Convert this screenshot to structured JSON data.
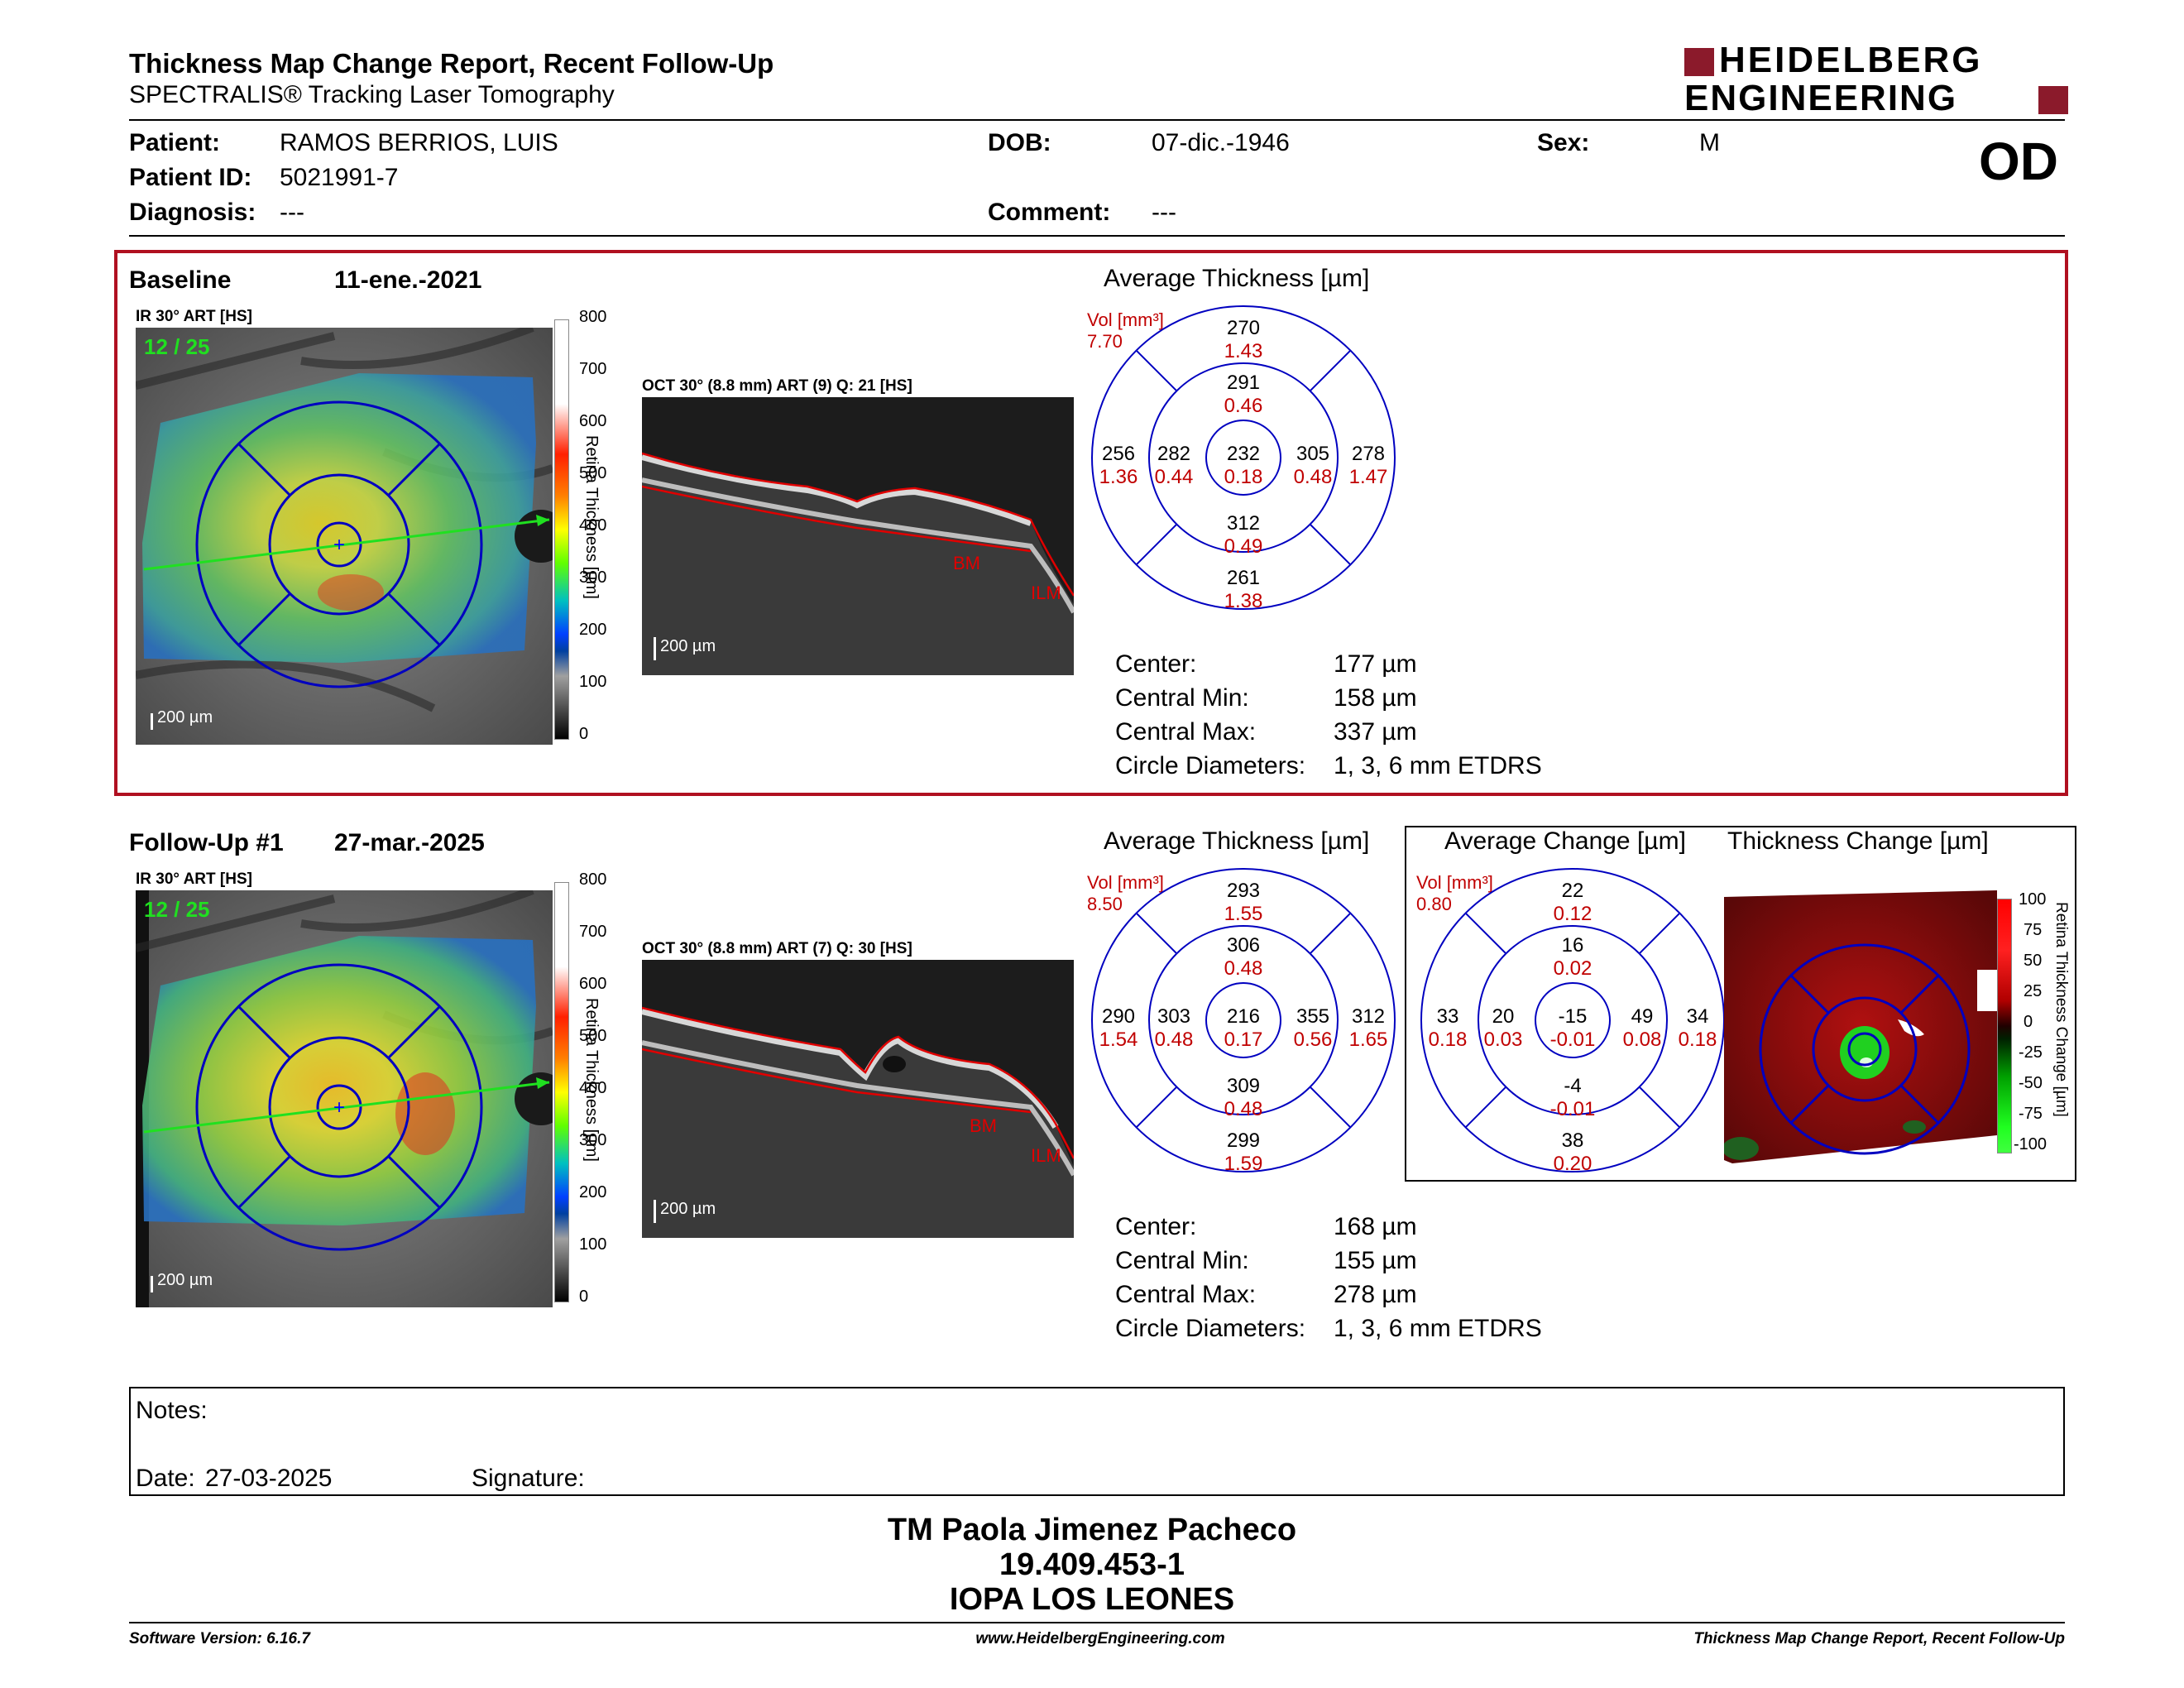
{
  "header": {
    "title": "Thickness Map Change Report, Recent Follow-Up",
    "subtitle": "SPECTRALIS® Tracking Laser Tomography",
    "brand_line1": "HEIDELBERG",
    "brand_line2": "ENGINEERING",
    "eye": "OD"
  },
  "patient": {
    "name_label": "Patient:",
    "name": "RAMOS BERRIOS, LUIS",
    "id_label": "Patient ID:",
    "id": "5021991-7",
    "diagnosis_label": "Diagnosis:",
    "diagnosis": "---",
    "dob_label": "DOB:",
    "dob": "07-dic.-1946",
    "comment_label": "Comment:",
    "comment": "---",
    "sex_label": "Sex:",
    "sex": "M"
  },
  "colors": {
    "accent_red": "#b01020",
    "value_red": "#c00000",
    "grid_blue": "#0000c0",
    "brand_red": "#8b1a2b"
  },
  "baseline": {
    "label": "Baseline",
    "date": "11-ene.-2021",
    "ir_label": "IR 30° ART [HS]",
    "ir_counter": "12 / 25",
    "scale": "200 µm",
    "oct_label": "OCT 30° (8.8 mm) ART (9) Q: 21 [HS]",
    "bm": "BM",
    "ilm": "ILM",
    "colorbar_title": "Retina Thickness [µm]",
    "colorbar_ticks": [
      "800",
      "700",
      "600",
      "500",
      "400",
      "300",
      "200",
      "100",
      "0"
    ],
    "avg_title": "Average Thickness [µm]",
    "vol_label": "Vol [mm³]",
    "vol_total": "7.70",
    "etdrs": {
      "center": [
        "232",
        "0.18"
      ],
      "inner_top": [
        "291",
        "0.46"
      ],
      "inner_bottom": [
        "312",
        "0.49"
      ],
      "inner_left": [
        "282",
        "0.44"
      ],
      "inner_right": [
        "305",
        "0.48"
      ],
      "outer_top": [
        "270",
        "1.43"
      ],
      "outer_bottom": [
        "261",
        "1.38"
      ],
      "outer_left": [
        "256",
        "1.36"
      ],
      "outer_right": [
        "278",
        "1.47"
      ]
    },
    "stats": [
      {
        "label": "Center:",
        "value": "177 µm"
      },
      {
        "label": "Central Min:",
        "value": "158 µm"
      },
      {
        "label": "Central Max:",
        "value": "337 µm"
      },
      {
        "label": "Circle Diameters:",
        "value": "1, 3, 6 mm ETDRS"
      }
    ]
  },
  "followup": {
    "label": "Follow-Up #1",
    "date": "27-mar.-2025",
    "ir_label": "IR 30° ART [HS]",
    "ir_counter": "12 / 25",
    "scale": "200 µm",
    "oct_label": "OCT 30° (8.8 mm) ART (7) Q: 30 [HS]",
    "bm": "BM",
    "ilm": "ILM",
    "colorbar_title": "Retina Thickness [µm]",
    "colorbar_ticks": [
      "800",
      "700",
      "600",
      "500",
      "400",
      "300",
      "200",
      "100",
      "0"
    ],
    "avg_title": "Average Thickness [µm]",
    "vol_label": "Vol [mm³]",
    "vol_total": "8.50",
    "etdrs": {
      "center": [
        "216",
        "0.17"
      ],
      "inner_top": [
        "306",
        "0.48"
      ],
      "inner_bottom": [
        "309",
        "0.48"
      ],
      "inner_left": [
        "303",
        "0.48"
      ],
      "inner_right": [
        "355",
        "0.56"
      ],
      "outer_top": [
        "293",
        "1.55"
      ],
      "outer_bottom": [
        "299",
        "1.59"
      ],
      "outer_left": [
        "290",
        "1.54"
      ],
      "outer_right": [
        "312",
        "1.65"
      ]
    },
    "stats": [
      {
        "label": "Center:",
        "value": "168 µm"
      },
      {
        "label": "Central Min:",
        "value": "155 µm"
      },
      {
        "label": "Central Max:",
        "value": "278 µm"
      },
      {
        "label": "Circle Diameters:",
        "value": "1, 3, 6 mm ETDRS"
      }
    ]
  },
  "change": {
    "avg_change_title": "Average Change [µm]",
    "thickness_change_title": "Thickness Change [µm]",
    "vol_label": "Vol [mm³]",
    "vol_total": "0.80",
    "etdrs": {
      "center": [
        "-15",
        "-0.01"
      ],
      "inner_top": [
        "16",
        "0.02"
      ],
      "inner_bottom": [
        "-4",
        "-0.01"
      ],
      "inner_left": [
        "20",
        "0.03"
      ],
      "inner_right": [
        "49",
        "0.08"
      ],
      "outer_top": [
        "22",
        "0.12"
      ],
      "outer_bottom": [
        "38",
        "0.20"
      ],
      "outer_left": [
        "33",
        "0.18"
      ],
      "outer_right": [
        "34",
        "0.18"
      ]
    },
    "colorbar_title": "Retina Thickness Change [µm]",
    "colorbar_ticks": [
      "100",
      "75",
      "50",
      "25",
      "0",
      "-25",
      "-50",
      "-75",
      "-100"
    ]
  },
  "notes": {
    "notes_label": "Notes:",
    "date_label": "Date:",
    "date": "27-03-2025",
    "signature_label": "Signature:"
  },
  "signer": {
    "name": "TM Paola Jimenez Pacheco",
    "rut": "19.409.453-1",
    "institution": "IOPA LOS LEONES"
  },
  "footer": {
    "software": "Software Version: 6.16.7",
    "website": "www.HeidelbergEngineering.com",
    "report": "Thickness Map Change Report, Recent Follow-Up"
  }
}
